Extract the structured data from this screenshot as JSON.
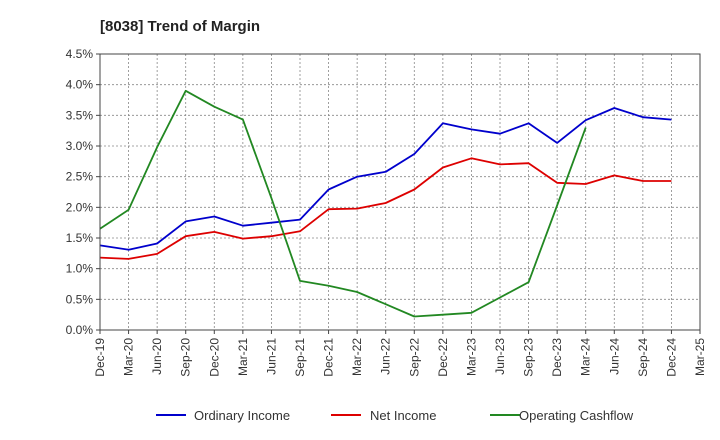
{
  "chart_data": {
    "type": "line",
    "title": "[8038]  Trend of Margin",
    "x": [
      "Dec-19",
      "Mar-20",
      "Jun-20",
      "Sep-20",
      "Dec-20",
      "Mar-21",
      "Jun-21",
      "Sep-21",
      "Dec-21",
      "Mar-22",
      "Jun-22",
      "Sep-22",
      "Dec-22",
      "Mar-23",
      "Jun-23",
      "Sep-23",
      "Dec-23",
      "Mar-24",
      "Jun-24",
      "Sep-24",
      "Dec-24",
      "Mar-25"
    ],
    "y_ticks": [
      "0.0%",
      "0.5%",
      "1.0%",
      "1.5%",
      "2.0%",
      "2.5%",
      "3.0%",
      "3.5%",
      "4.0%",
      "4.5%"
    ],
    "ylim": [
      0,
      4.5
    ],
    "grid": true,
    "legend_position": "bottom",
    "series": [
      {
        "name": "Ordinary Income",
        "color": "#0000cc",
        "values": [
          1.38,
          1.31,
          1.41,
          1.77,
          1.85,
          1.7,
          1.75,
          1.8,
          2.29,
          2.5,
          2.58,
          2.87,
          3.37,
          3.27,
          3.2,
          3.37,
          3.05,
          3.42,
          3.62,
          3.47,
          3.43,
          null
        ]
      },
      {
        "name": "Net Income",
        "color": "#dd0000",
        "values": [
          1.18,
          1.16,
          1.24,
          1.53,
          1.6,
          1.49,
          1.53,
          1.61,
          1.97,
          1.98,
          2.07,
          2.29,
          2.65,
          2.8,
          2.7,
          2.72,
          2.4,
          2.38,
          2.52,
          2.43,
          2.43,
          null
        ]
      },
      {
        "name": "Operating Cashflow",
        "color": "#228822",
        "values": [
          1.65,
          1.96,
          2.98,
          3.9,
          3.64,
          3.43,
          2.15,
          0.8,
          0.72,
          0.62,
          0.42,
          0.22,
          0.25,
          0.28,
          0.53,
          0.78,
          2.03,
          3.3,
          null,
          null,
          null,
          null
        ]
      }
    ]
  }
}
